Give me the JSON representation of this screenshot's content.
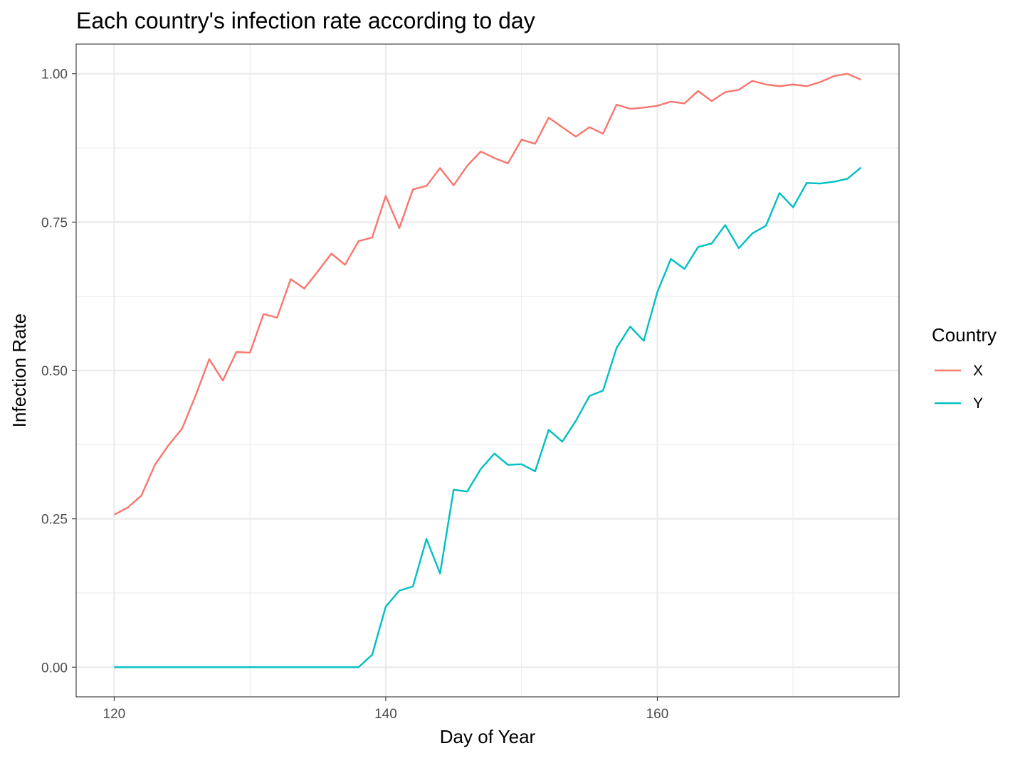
{
  "chart_data": {
    "type": "line",
    "title": "Each country's infection rate according to day",
    "xlabel": "Day of Year",
    "ylabel": "Infection Rate",
    "xlim": [
      117.2,
      177.8
    ],
    "ylim": [
      -0.05,
      1.05
    ],
    "x_ticks": [
      120,
      140,
      160
    ],
    "x_tick_labels": [
      "120",
      "140",
      "160"
    ],
    "y_ticks": [
      0,
      0.25,
      0.5,
      0.75,
      1.0
    ],
    "y_tick_labels": [
      "0.00",
      "0.25",
      "0.50",
      "0.75",
      "1.00"
    ],
    "grid": true,
    "legend": {
      "title": "Country",
      "position": "right"
    },
    "x": [
      120,
      121,
      122,
      123,
      124,
      125,
      126,
      127,
      128,
      129,
      130,
      131,
      132,
      133,
      134,
      135,
      136,
      137,
      138,
      139,
      140,
      141,
      142,
      143,
      144,
      145,
      146,
      147,
      148,
      149,
      150,
      151,
      152,
      153,
      154,
      155,
      156,
      157,
      158,
      159,
      160,
      161,
      162,
      163,
      164,
      165,
      166,
      167,
      168,
      169,
      170,
      171,
      172,
      173,
      174,
      175
    ],
    "series": [
      {
        "name": "X",
        "color": "#F8766D",
        "values": [
          0.257,
          0.269,
          0.289,
          0.341,
          0.374,
          0.402,
          0.458,
          0.519,
          0.483,
          0.531,
          0.53,
          0.595,
          0.589,
          0.654,
          0.638,
          0.667,
          0.697,
          0.678,
          0.718,
          0.724,
          0.794,
          0.74,
          0.805,
          0.811,
          0.841,
          0.812,
          0.845,
          0.869,
          0.858,
          0.849,
          0.889,
          0.882,
          0.926,
          0.91,
          0.894,
          0.91,
          0.899,
          0.948,
          0.941,
          0.943,
          0.946,
          0.953,
          0.95,
          0.971,
          0.954,
          0.969,
          0.973,
          0.988,
          0.982,
          0.979,
          0.982,
          0.979,
          0.986,
          0.996,
          1.0,
          0.99
        ]
      },
      {
        "name": "Y",
        "color": "#00BFC4",
        "values": [
          0,
          0,
          0,
          0,
          0,
          0,
          0,
          0,
          0,
          0,
          0,
          0,
          0,
          0,
          0,
          0,
          0,
          0,
          0,
          0.021,
          0.102,
          0.129,
          0.136,
          0.216,
          0.158,
          0.299,
          0.296,
          0.334,
          0.36,
          0.341,
          0.342,
          0.33,
          0.4,
          0.38,
          0.415,
          0.457,
          0.466,
          0.538,
          0.574,
          0.55,
          0.632,
          0.688,
          0.671,
          0.708,
          0.714,
          0.745,
          0.706,
          0.731,
          0.744,
          0.799,
          0.775,
          0.816,
          0.815,
          0.818,
          0.823,
          0.842
        ]
      }
    ]
  }
}
